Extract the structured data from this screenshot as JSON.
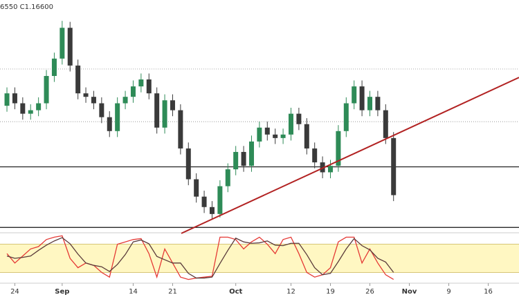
{
  "chart_data": [
    {
      "type": "candlestick",
      "subtitle": "6550 C1.16600",
      "x": [
        0,
        1,
        2,
        3,
        4,
        5,
        6,
        7,
        8,
        9,
        10,
        11,
        12,
        13,
        14,
        15,
        16,
        17,
        18,
        19,
        20,
        21,
        22,
        23,
        24,
        25,
        26,
        27,
        28,
        29,
        30,
        31,
        32,
        33,
        34,
        35,
        36,
        37,
        38,
        39,
        40,
        41,
        42,
        43,
        44,
        45,
        46,
        47,
        48,
        49
      ],
      "open": [
        1.184,
        1.1865,
        1.1845,
        1.1824,
        1.1831,
        1.1845,
        1.19,
        1.1935,
        1.1997,
        1.1921,
        1.1865,
        1.1858,
        1.1845,
        1.1817,
        1.1789,
        1.1845,
        1.1858,
        1.1879,
        1.1893,
        1.1865,
        1.1796,
        1.1851,
        1.1831,
        1.1754,
        1.1692,
        1.1657,
        1.1636,
        1.1622,
        1.1678,
        1.1712,
        1.1747,
        1.1719,
        1.1768,
        1.1796,
        1.1782,
        1.1775,
        1.1782,
        1.1824,
        1.1803,
        1.1754,
        1.1726,
        1.1706,
        1.1719,
        1.1789,
        1.1845,
        1.1879,
        1.1831,
        1.1858,
        1.1831,
        1.1775
      ],
      "high": [
        1.1877,
        1.1877,
        1.1857,
        1.1843,
        1.1857,
        1.1912,
        1.1947,
        1.2011,
        1.2009,
        1.1933,
        1.1877,
        1.187,
        1.1857,
        1.1829,
        1.1857,
        1.187,
        1.1891,
        1.1905,
        1.1905,
        1.1877,
        1.1863,
        1.1863,
        1.1843,
        1.1766,
        1.1704,
        1.1669,
        1.1648,
        1.169,
        1.1724,
        1.1759,
        1.1759,
        1.178,
        1.1808,
        1.1808,
        1.1794,
        1.1794,
        1.1836,
        1.1836,
        1.1815,
        1.1766,
        1.1738,
        1.1731,
        1.1801,
        1.1857,
        1.1891,
        1.1891,
        1.187,
        1.187,
        1.1843,
        1.1787
      ],
      "low": [
        1.1828,
        1.1833,
        1.1812,
        1.1812,
        1.1819,
        1.1833,
        1.1888,
        1.1923,
        1.1909,
        1.1853,
        1.1846,
        1.1833,
        1.1805,
        1.1777,
        1.1777,
        1.1833,
        1.1846,
        1.1867,
        1.1853,
        1.1784,
        1.1784,
        1.1819,
        1.1742,
        1.168,
        1.1645,
        1.1624,
        1.1612,
        1.1615,
        1.1666,
        1.17,
        1.1707,
        1.1707,
        1.1756,
        1.177,
        1.1763,
        1.1763,
        1.177,
        1.1791,
        1.1742,
        1.1714,
        1.1694,
        1.1694,
        1.1707,
        1.1777,
        1.1833,
        1.1819,
        1.1819,
        1.1819,
        1.1763,
        1.1648
      ],
      "close": [
        1.1865,
        1.1845,
        1.1824,
        1.1831,
        1.1845,
        1.19,
        1.1935,
        1.1997,
        1.1921,
        1.1865,
        1.1858,
        1.1845,
        1.1817,
        1.1789,
        1.1845,
        1.1858,
        1.1879,
        1.1893,
        1.1865,
        1.1796,
        1.1851,
        1.1831,
        1.1754,
        1.1692,
        1.1657,
        1.1636,
        1.1622,
        1.1678,
        1.1712,
        1.1747,
        1.1719,
        1.1768,
        1.1796,
        1.1782,
        1.1775,
        1.1782,
        1.1824,
        1.1803,
        1.1754,
        1.1726,
        1.1706,
        1.1719,
        1.1789,
        1.1845,
        1.1879,
        1.1831,
        1.1858,
        1.1831,
        1.1775,
        1.166
      ],
      "up_color": "#2e8b57",
      "down_color": "#3a3a3a",
      "xlim": [
        -0.88,
        64.9
      ],
      "ylim": [
        1.1587,
        1.2053
      ],
      "xticks": [
        {
          "value": 1,
          "label": "24"
        },
        {
          "value": 7,
          "label": "Sep"
        },
        {
          "value": 16,
          "label": "14"
        },
        {
          "value": 21,
          "label": "21"
        },
        {
          "value": 29,
          "label": "Oct"
        },
        {
          "value": 36,
          "label": "12"
        },
        {
          "value": 41,
          "label": "19"
        },
        {
          "value": 46,
          "label": "26"
        },
        {
          "value": 51,
          "label": "Nov"
        },
        {
          "value": 56,
          "label": "9"
        },
        {
          "value": 61,
          "label": "16"
        }
      ],
      "levels": [
        {
          "value": 1.1914,
          "style": "dotted"
        },
        {
          "value": 1.1808,
          "style": "dotted"
        },
        {
          "value": 1.1717,
          "style": "solid"
        },
        {
          "value": 1.1595,
          "style": "solid"
        }
      ],
      "trendline": [
        [
          22.1,
          1.1583
        ],
        [
          64.9,
          1.1897
        ]
      ],
      "trendline_color": "#b22222"
    },
    {
      "type": "line",
      "x": [
        0,
        1,
        2,
        3,
        4,
        5,
        6,
        7,
        8,
        9,
        10,
        11,
        12,
        13,
        14,
        15,
        16,
        17,
        18,
        19,
        20,
        21,
        22,
        23,
        24,
        25,
        26,
        27,
        28,
        29,
        30,
        31,
        32,
        33,
        34,
        35,
        36,
        37,
        38,
        39,
        40,
        41,
        42,
        43,
        44,
        45,
        46,
        47,
        48,
        49
      ],
      "series": [
        {
          "color": "#e53935",
          "values": [
            60,
            40,
            55,
            70,
            75,
            90,
            95,
            98,
            50,
            30,
            40,
            35,
            20,
            10,
            80,
            85,
            90,
            92,
            60,
            10,
            70,
            40,
            10,
            5,
            8,
            10,
            12,
            95,
            95,
            90,
            70,
            85,
            95,
            80,
            60,
            90,
            95,
            60,
            20,
            10,
            15,
            30,
            85,
            95,
            95,
            40,
            70,
            40,
            15,
            5
          ]
        },
        {
          "color": "#5a3a3a",
          "values": [
            55,
            50,
            52,
            55,
            67,
            78,
            87,
            94,
            81,
            59,
            40,
            35,
            32,
            22,
            37,
            58,
            85,
            89,
            81,
            54,
            47,
            40,
            40,
            18,
            8,
            8,
            10,
            39,
            67,
            93,
            85,
            82,
            83,
            87,
            78,
            77,
            82,
            82,
            58,
            30,
            15,
            18,
            43,
            70,
            92,
            77,
            68,
            50,
            42,
            20
          ]
        }
      ],
      "xlim": [
        -0.88,
        64.9
      ],
      "ylim": [
        0,
        100
      ],
      "bands": [
        20,
        80
      ]
    }
  ]
}
